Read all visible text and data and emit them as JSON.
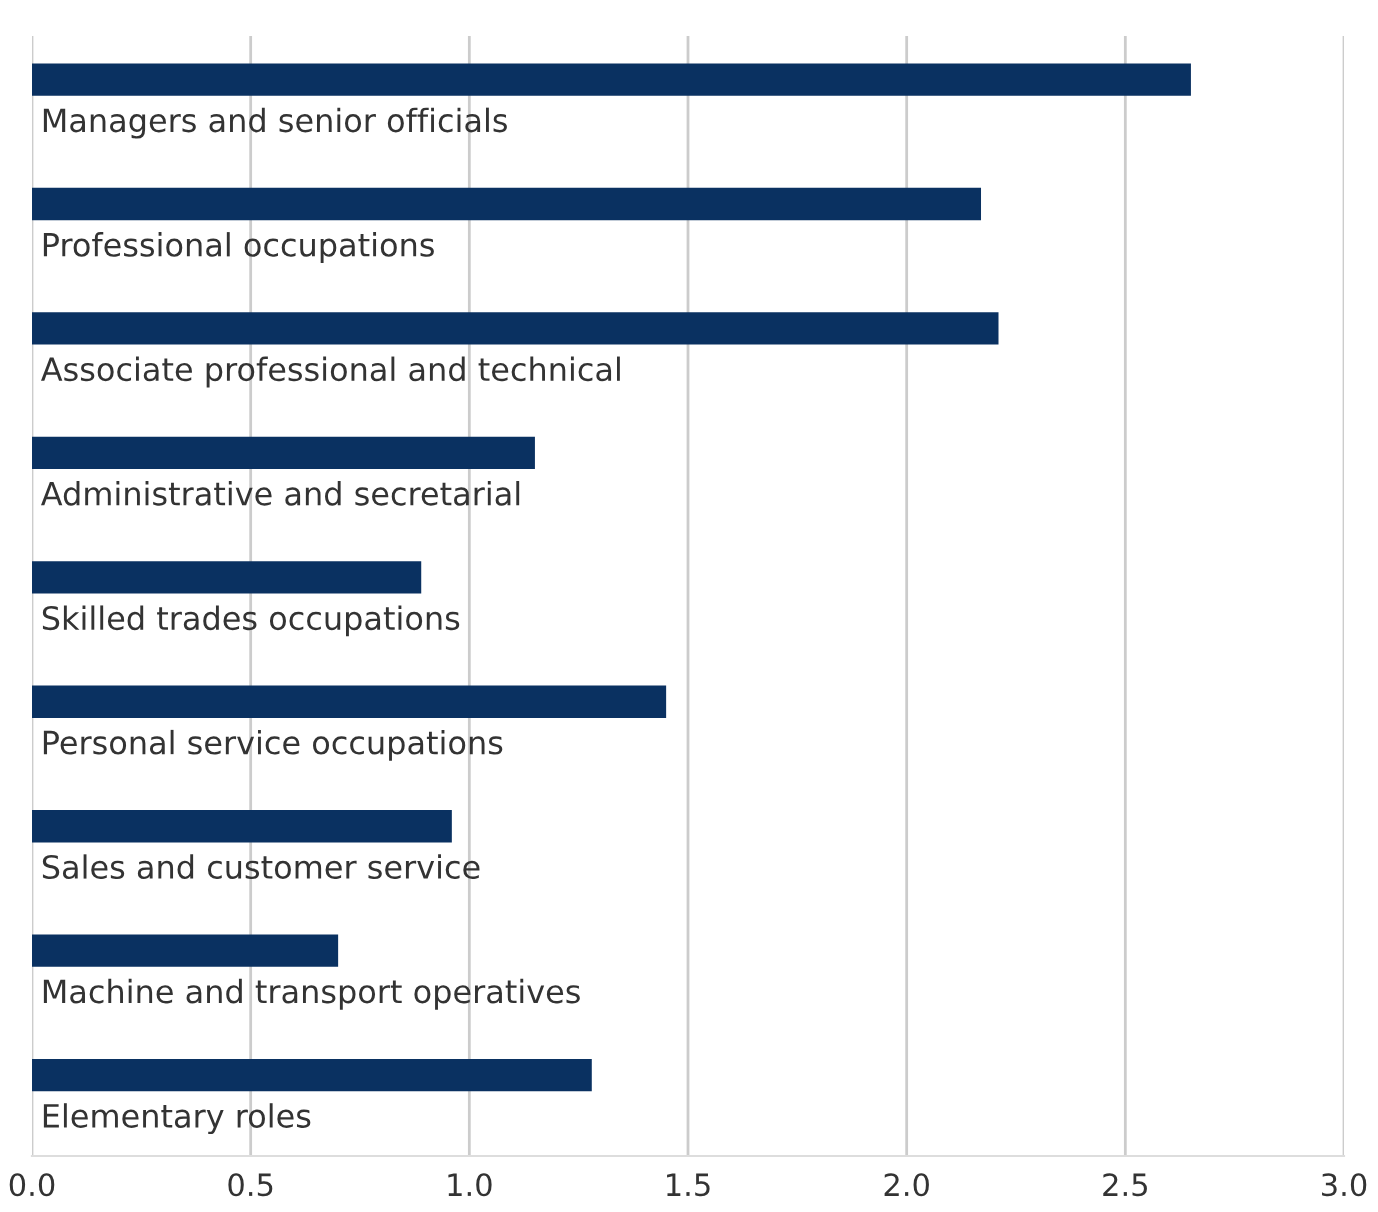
{
  "chart_data": {
    "type": "bar",
    "orientation": "horizontal",
    "categories": [
      "Managers and senior officials",
      "Professional occupations",
      "Associate professional and technical",
      "Administrative and secretarial",
      "Skilled trades occupations",
      "Personal service occupations",
      "Sales and customer service",
      "Machine and transport operatives",
      "Elementary roles"
    ],
    "values": [
      2.65,
      2.17,
      2.21,
      1.15,
      0.89,
      1.45,
      0.96,
      0.7,
      1.28
    ],
    "color": "#0a3161",
    "xlim": [
      0,
      3.0
    ],
    "xticks": [
      {
        "value": 0,
        "label": "0.0"
      },
      {
        "value": 0.5,
        "label": "0.5"
      },
      {
        "value": 1.0,
        "label": "1.0"
      },
      {
        "value": 1.5,
        "label": "1.5"
      },
      {
        "value": 2.0,
        "label": "2.0"
      },
      {
        "value": 2.5,
        "label": "2.5"
      },
      {
        "value": 3.0,
        "label": "3.0"
      }
    ],
    "grid": "x"
  }
}
